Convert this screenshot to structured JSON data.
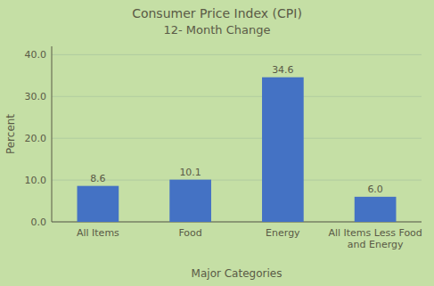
{
  "chart_data": {
    "type": "bar",
    "title": "Consumer Price Index (CPI)",
    "subtitle": "12- Month Change",
    "categories": [
      "All Items",
      "Food",
      "Energy",
      "All Items Less Food\nand Energy"
    ],
    "values": [
      8.6,
      10.1,
      34.6,
      6.0
    ],
    "value_labels": [
      "8.6",
      "10.1",
      "34.6",
      "6.0"
    ],
    "color": "#4472C4",
    "x_label": "Major Categories",
    "y_label": "Percent",
    "ylim": [
      0,
      42
    ],
    "yticks": [
      {
        "value": 0.0,
        "label": "0.0"
      },
      {
        "value": 10.0,
        "label": "10.0"
      },
      {
        "value": 20.0,
        "label": "20.0"
      },
      {
        "value": 30.0,
        "label": "30.0"
      },
      {
        "value": 40.0,
        "label": "40.0"
      }
    ],
    "grid": true,
    "data_labels": true
  }
}
